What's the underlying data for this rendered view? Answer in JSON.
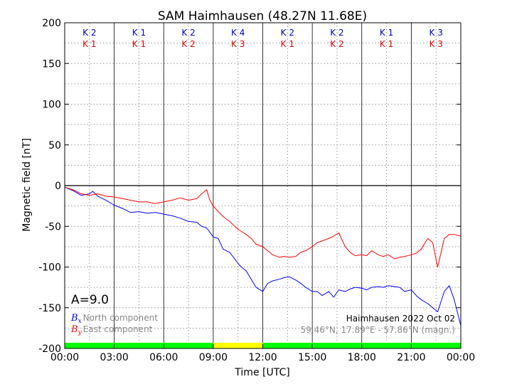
{
  "chart_data": {
    "type": "line",
    "title": "SAM Haimhausen (48.27N 11.68E)",
    "xlabel": "Time [UTC]",
    "ylabel": "Magnetic field [nT]",
    "xlim": [
      0,
      24
    ],
    "ylim": [
      -200,
      200
    ],
    "x_ticks": [
      0,
      3,
      6,
      9,
      12,
      15,
      18,
      21,
      24
    ],
    "x_tick_labels": [
      "00:00",
      "03:00",
      "06:00",
      "09:00",
      "12:00",
      "15:00",
      "18:00",
      "21:00",
      "00:00"
    ],
    "y_ticks": [
      -200,
      -150,
      -100,
      -50,
      0,
      50,
      100,
      150,
      200
    ],
    "y_tick_labels": [
      "-200",
      "-150",
      "-100",
      "-50",
      "0",
      "50",
      "100",
      "150",
      "200"
    ],
    "grid": true,
    "colors": {
      "bx": "#0000ff",
      "by": "#ff0000",
      "quiet": "#00ff00",
      "active": "#ffff00",
      "k_bx": "#0000cc",
      "k_by": "#dd0000"
    },
    "k_index": {
      "bx": [
        "K 2",
        "K 1",
        "K 2",
        "K 4",
        "K 2",
        "K 2",
        "K 1",
        "K 3"
      ],
      "by": [
        "K 1",
        "K 1",
        "K 2",
        "K 3",
        "K 1",
        "K 2",
        "K 1",
        "K 3"
      ]
    },
    "activity_bar": [
      {
        "from": 0,
        "to": 9,
        "level": "quiet"
      },
      {
        "from": 9,
        "to": 12,
        "level": "active"
      },
      {
        "from": 12,
        "to": 24,
        "level": "quiet"
      }
    ],
    "a_index_label": "A=9.0",
    "legend": {
      "placement": "bottom-left",
      "entries": [
        {
          "symbol": "B",
          "sub": "x",
          "label": "North component",
          "color": "#0000ff"
        },
        {
          "symbol": "B",
          "sub": "y",
          "label": "East component",
          "color": "#ff0000"
        }
      ]
    },
    "station_label": "Haimhausen 2022 Oct 02",
    "coords_label": "59.46°N, 17.89°E - 57.86°N (magn.)",
    "series": [
      {
        "name": "North component",
        "color": "#0000ff",
        "x": [
          0,
          0.5,
          1,
          1.5,
          1.7,
          2,
          2.5,
          3,
          3.5,
          4,
          4.5,
          5,
          5.5,
          6,
          6.5,
          7,
          7.5,
          8,
          8.3,
          8.6,
          9,
          9.3,
          9.6,
          10,
          10.3,
          10.6,
          11,
          11.3,
          11.6,
          12,
          12.3,
          12.6,
          13,
          13.3,
          13.6,
          14,
          14.3,
          14.6,
          15,
          15.3,
          15.6,
          16,
          16.3,
          16.6,
          17,
          17.3,
          17.6,
          18,
          18.3,
          18.6,
          19,
          19.3,
          19.6,
          20,
          20.3,
          20.6,
          21,
          21.3,
          21.6,
          22,
          22.3,
          22.6,
          23,
          23.3,
          23.6,
          24
        ],
        "y": [
          -2,
          -6,
          -12,
          -10,
          -7,
          -13,
          -18,
          -24,
          -28,
          -33,
          -32,
          -34,
          -33,
          -35,
          -37,
          -40,
          -44,
          -45,
          -50,
          -52,
          -63,
          -65,
          -78,
          -82,
          -90,
          -98,
          -105,
          -115,
          -125,
          -130,
          -120,
          -117,
          -115,
          -113,
          -112,
          -116,
          -120,
          -125,
          -130,
          -130,
          -135,
          -130,
          -137,
          -128,
          -130,
          -127,
          -125,
          -126,
          -128,
          -125,
          -124,
          -125,
          -123,
          -124,
          -125,
          -130,
          -128,
          -135,
          -140,
          -145,
          -150,
          -155,
          -130,
          -123,
          -140,
          -172
        ]
      },
      {
        "name": "East component",
        "color": "#ff0000",
        "x": [
          0,
          0.5,
          1,
          1.5,
          2,
          2.5,
          3,
          3.5,
          4,
          4.5,
          5,
          5.5,
          6,
          6.5,
          7,
          7.5,
          8,
          8.3,
          8.6,
          8.8,
          9,
          9.3,
          9.6,
          10,
          10.3,
          10.6,
          11,
          11.3,
          11.6,
          12,
          12.3,
          12.6,
          13,
          13.3,
          13.6,
          14,
          14.3,
          14.6,
          15,
          15.3,
          15.6,
          16,
          16.3,
          16.6,
          17,
          17.3,
          17.6,
          18,
          18.3,
          18.6,
          19,
          19.3,
          19.6,
          20,
          20.3,
          20.6,
          21,
          21.3,
          21.6,
          22,
          22.3,
          22.6,
          23,
          23.3,
          23.6,
          24
        ],
        "y": [
          -2,
          -5,
          -10,
          -12,
          -10,
          -13,
          -14,
          -16,
          -18,
          -20,
          -20,
          -22,
          -20,
          -18,
          -15,
          -18,
          -16,
          -10,
          -5,
          -18,
          -25,
          -32,
          -38,
          -44,
          -50,
          -55,
          -60,
          -65,
          -72,
          -75,
          -80,
          -85,
          -88,
          -87,
          -88,
          -87,
          -82,
          -80,
          -75,
          -70,
          -68,
          -65,
          -62,
          -58,
          -75,
          -82,
          -86,
          -85,
          -86,
          -80,
          -85,
          -87,
          -85,
          -90,
          -88,
          -87,
          -85,
          -83,
          -78,
          -65,
          -70,
          -100,
          -65,
          -60,
          -60,
          -62
        ]
      }
    ]
  }
}
